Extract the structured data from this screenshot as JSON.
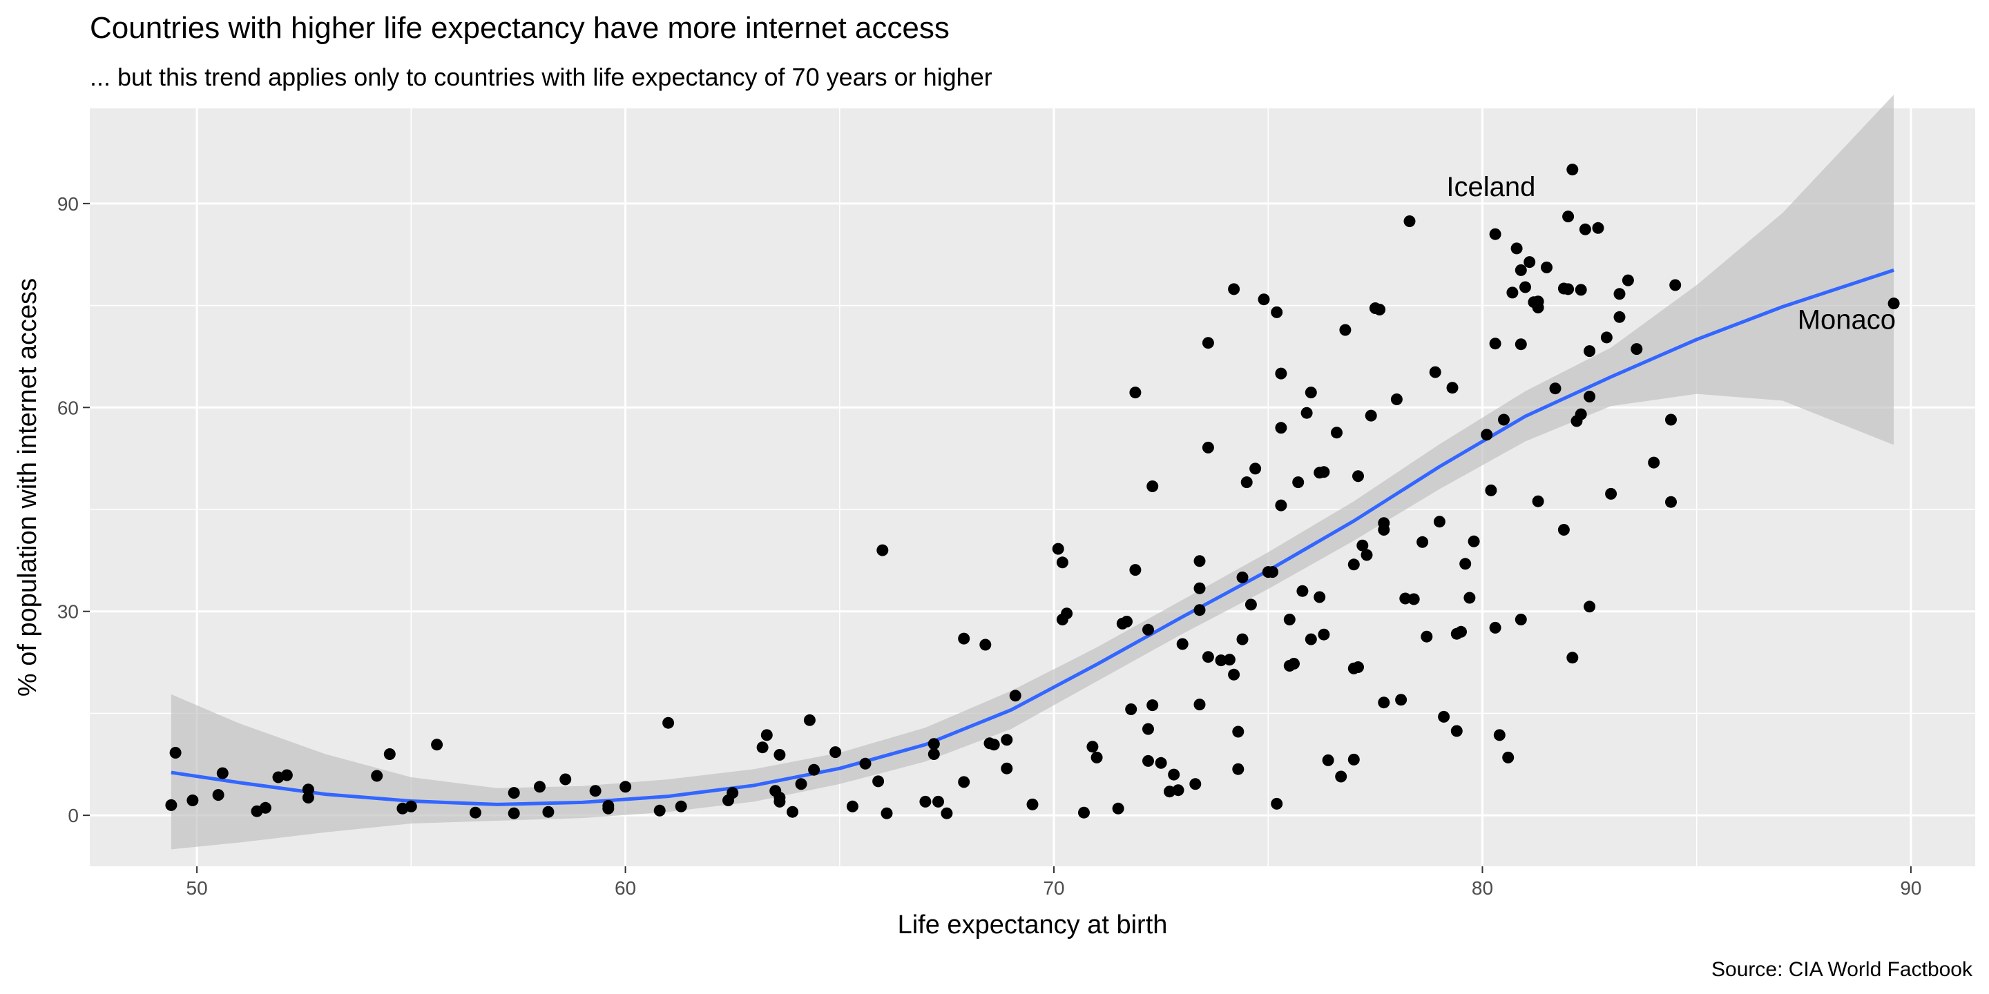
{
  "chart_data": {
    "type": "scatter",
    "title": "Countries with higher life expectancy have more internet access",
    "subtitle": "... but this trend applies only to countries with life expectancy of 70 years or higher",
    "xlabel": "Life expectancy at birth",
    "ylabel": "% of population with internet access",
    "caption": "Source: CIA World Factbook",
    "xlim": [
      47.5,
      91.5
    ],
    "ylim": [
      -7.5,
      104
    ],
    "xticks": [
      50,
      60,
      70,
      80,
      90
    ],
    "yticks": [
      0,
      30,
      60,
      90
    ],
    "grid": true,
    "colors": {
      "panel_bg": "#ebebeb",
      "grid_major": "#ffffff",
      "points": "#000000",
      "smooth_line": "#3366ff",
      "ribbon": "#bfbfbf"
    },
    "annotations": [
      {
        "label": "Iceland",
        "x": 80.2,
        "y": 92.5
      },
      {
        "label": "Monaco",
        "x": 88.5,
        "y": 73
      }
    ],
    "points": [
      [
        49.4,
        1.5
      ],
      [
        49.5,
        9.2
      ],
      [
        49.9,
        2.2
      ],
      [
        50.5,
        3.0
      ],
      [
        50.6,
        6.2
      ],
      [
        51.4,
        0.6
      ],
      [
        51.6,
        1.1
      ],
      [
        51.9,
        5.6
      ],
      [
        52.1,
        5.9
      ],
      [
        52.6,
        2.6
      ],
      [
        52.6,
        3.8
      ],
      [
        54.2,
        5.8
      ],
      [
        54.5,
        9.0
      ],
      [
        54.8,
        1.0
      ],
      [
        55.0,
        1.3
      ],
      [
        55.6,
        10.4
      ],
      [
        56.5,
        0.4
      ],
      [
        57.4,
        0.3
      ],
      [
        57.4,
        3.3
      ],
      [
        58.0,
        4.2
      ],
      [
        58.2,
        0.5
      ],
      [
        58.6,
        5.3
      ],
      [
        59.3,
        3.6
      ],
      [
        59.6,
        1.0
      ],
      [
        59.6,
        1.4
      ],
      [
        60.0,
        4.2
      ],
      [
        60.8,
        0.7
      ],
      [
        61.0,
        13.6
      ],
      [
        61.3,
        1.3
      ],
      [
        62.4,
        2.2
      ],
      [
        62.5,
        3.3
      ],
      [
        63.2,
        10.0
      ],
      [
        63.3,
        11.8
      ],
      [
        63.5,
        3.6
      ],
      [
        63.6,
        2.0
      ],
      [
        63.6,
        2.6
      ],
      [
        63.6,
        8.9
      ],
      [
        63.9,
        0.5
      ],
      [
        64.1,
        4.6
      ],
      [
        64.3,
        14.0
      ],
      [
        64.4,
        6.7
      ],
      [
        64.9,
        9.3
      ],
      [
        65.3,
        1.3
      ],
      [
        65.6,
        7.6
      ],
      [
        65.9,
        5.0
      ],
      [
        66.0,
        39.0
      ],
      [
        66.1,
        0.3
      ],
      [
        67.0,
        2.0
      ],
      [
        67.2,
        10.5
      ],
      [
        67.2,
        9.0
      ],
      [
        67.3,
        2.0
      ],
      [
        67.5,
        0.3
      ],
      [
        67.9,
        4.9
      ],
      [
        67.9,
        26.0
      ],
      [
        68.4,
        25.1
      ],
      [
        68.5,
        10.6
      ],
      [
        68.6,
        10.4
      ],
      [
        68.9,
        11.1
      ],
      [
        68.9,
        6.9
      ],
      [
        69.1,
        17.6
      ],
      [
        69.5,
        1.6
      ],
      [
        70.1,
        39.2
      ],
      [
        70.2,
        37.2
      ],
      [
        70.2,
        28.8
      ],
      [
        70.3,
        29.7
      ],
      [
        70.7,
        0.4
      ],
      [
        70.9,
        10.1
      ],
      [
        71.0,
        8.5
      ],
      [
        71.5,
        1.0
      ],
      [
        71.6,
        28.2
      ],
      [
        71.7,
        28.5
      ],
      [
        71.8,
        15.6
      ],
      [
        71.9,
        62.2
      ],
      [
        71.9,
        36.1
      ],
      [
        72.2,
        27.3
      ],
      [
        72.2,
        12.7
      ],
      [
        72.2,
        8.0
      ],
      [
        72.3,
        48.4
      ],
      [
        72.3,
        16.2
      ],
      [
        72.5,
        7.7
      ],
      [
        72.7,
        3.5
      ],
      [
        72.8,
        6.0
      ],
      [
        72.9,
        3.7
      ],
      [
        73.0,
        25.2
      ],
      [
        73.3,
        4.6
      ],
      [
        73.4,
        30.2
      ],
      [
        73.4,
        37.4
      ],
      [
        73.4,
        33.4
      ],
      [
        73.4,
        16.3
      ],
      [
        73.6,
        69.5
      ],
      [
        73.6,
        54.1
      ],
      [
        73.6,
        23.3
      ],
      [
        73.9,
        22.8
      ],
      [
        74.1,
        22.9
      ],
      [
        74.2,
        77.4
      ],
      [
        74.2,
        20.7
      ],
      [
        74.3,
        6.8
      ],
      [
        74.3,
        12.3
      ],
      [
        74.4,
        25.9
      ],
      [
        74.4,
        35.0
      ],
      [
        74.5,
        49.0
      ],
      [
        74.6,
        31.0
      ],
      [
        74.7,
        51.0
      ],
      [
        74.9,
        75.9
      ],
      [
        75.0,
        35.8
      ],
      [
        75.1,
        35.8
      ],
      [
        75.2,
        74.0
      ],
      [
        75.2,
        1.7
      ],
      [
        75.3,
        65.0
      ],
      [
        75.3,
        57.0
      ],
      [
        75.3,
        45.6
      ],
      [
        75.5,
        28.8
      ],
      [
        75.5,
        22.0
      ],
      [
        75.6,
        22.3
      ],
      [
        75.7,
        49.0
      ],
      [
        75.8,
        33.0
      ],
      [
        75.9,
        59.2
      ],
      [
        76.0,
        25.9
      ],
      [
        76.0,
        62.2
      ],
      [
        76.2,
        50.4
      ],
      [
        76.2,
        32.1
      ],
      [
        76.3,
        26.6
      ],
      [
        76.3,
        50.5
      ],
      [
        76.4,
        8.1
      ],
      [
        76.6,
        56.3
      ],
      [
        76.7,
        5.7
      ],
      [
        76.8,
        71.4
      ],
      [
        77.0,
        36.9
      ],
      [
        77.0,
        21.6
      ],
      [
        77.1,
        21.8
      ],
      [
        77.0,
        8.2
      ],
      [
        77.1,
        49.9
      ],
      [
        77.2,
        39.7
      ],
      [
        77.3,
        38.3
      ],
      [
        77.4,
        58.8
      ],
      [
        77.5,
        74.6
      ],
      [
        77.6,
        74.4
      ],
      [
        77.7,
        42.0
      ],
      [
        77.7,
        43.0
      ],
      [
        77.7,
        16.6
      ],
      [
        78.0,
        61.2
      ],
      [
        78.1,
        17.0
      ],
      [
        78.2,
        31.9
      ],
      [
        78.3,
        87.4
      ],
      [
        78.4,
        31.8
      ],
      [
        78.6,
        40.2
      ],
      [
        78.7,
        26.3
      ],
      [
        78.9,
        65.2
      ],
      [
        79.0,
        43.2
      ],
      [
        79.1,
        14.5
      ],
      [
        79.3,
        62.9
      ],
      [
        79.4,
        12.4
      ],
      [
        79.4,
        26.7
      ],
      [
        79.5,
        27.0
      ],
      [
        79.6,
        37.0
      ],
      [
        79.7,
        32.0
      ],
      [
        79.8,
        40.3
      ],
      [
        80.1,
        56.0
      ],
      [
        80.2,
        47.8
      ],
      [
        80.3,
        85.5
      ],
      [
        80.3,
        69.4
      ],
      [
        80.3,
        27.6
      ],
      [
        80.4,
        11.8
      ],
      [
        80.5,
        58.2
      ],
      [
        80.6,
        8.5
      ],
      [
        80.7,
        76.9
      ],
      [
        80.8,
        83.4
      ],
      [
        80.9,
        80.2
      ],
      [
        80.9,
        69.3
      ],
      [
        80.9,
        28.8
      ],
      [
        81.0,
        77.7
      ],
      [
        81.1,
        81.4
      ],
      [
        81.2,
        75.5
      ],
      [
        81.3,
        74.7
      ],
      [
        81.3,
        75.6
      ],
      [
        81.3,
        46.2
      ],
      [
        81.5,
        80.6
      ],
      [
        81.7,
        62.8
      ],
      [
        81.9,
        77.5
      ],
      [
        81.9,
        42.0
      ],
      [
        82.0,
        77.4
      ],
      [
        82.0,
        88.1
      ],
      [
        82.1,
        95.0
      ],
      [
        82.1,
        23.2
      ],
      [
        82.2,
        58.0
      ],
      [
        82.3,
        59.0
      ],
      [
        82.3,
        77.3
      ],
      [
        82.4,
        86.2
      ],
      [
        82.5,
        68.3
      ],
      [
        82.5,
        61.6
      ],
      [
        82.5,
        30.7
      ],
      [
        82.7,
        86.4
      ],
      [
        82.9,
        70.3
      ],
      [
        83.0,
        47.3
      ],
      [
        83.2,
        76.7
      ],
      [
        83.2,
        73.3
      ],
      [
        83.4,
        78.7
      ],
      [
        83.6,
        68.6
      ],
      [
        84.0,
        51.9
      ],
      [
        84.4,
        58.2
      ],
      [
        84.4,
        46.1
      ],
      [
        84.5,
        78.0
      ],
      [
        89.6,
        75.3
      ]
    ],
    "smooth": [
      [
        49.4,
        6.3
      ],
      [
        51.0,
        4.8
      ],
      [
        53.0,
        3.1
      ],
      [
        55.0,
        2.1
      ],
      [
        57.0,
        1.6
      ],
      [
        59.0,
        1.9
      ],
      [
        61.0,
        2.8
      ],
      [
        63.0,
        4.4
      ],
      [
        65.0,
        6.9
      ],
      [
        67.0,
        10.4
      ],
      [
        69.0,
        15.5
      ],
      [
        71.0,
        22.2
      ],
      [
        73.0,
        29.2
      ],
      [
        75.0,
        36.0
      ],
      [
        77.0,
        43.3
      ],
      [
        79.0,
        51.3
      ],
      [
        81.0,
        58.7
      ],
      [
        83.0,
        64.5
      ],
      [
        85.0,
        70.0
      ],
      [
        87.0,
        74.8
      ],
      [
        89.6,
        80.2
      ]
    ],
    "ribbon": [
      [
        49.4,
        -5.0,
        17.8
      ],
      [
        51.0,
        -4.0,
        13.5
      ],
      [
        53.0,
        -2.5,
        9.0
      ],
      [
        55.0,
        -1.2,
        5.6
      ],
      [
        57.0,
        -0.8,
        4.0
      ],
      [
        59.0,
        -0.4,
        4.3
      ],
      [
        61.0,
        0.5,
        5.3
      ],
      [
        63.0,
        2.0,
        6.8
      ],
      [
        65.0,
        4.6,
        9.2
      ],
      [
        67.0,
        7.9,
        12.9
      ],
      [
        69.0,
        12.7,
        18.3
      ],
      [
        71.0,
        19.7,
        24.7
      ],
      [
        73.0,
        26.7,
        31.7
      ],
      [
        75.0,
        33.3,
        38.7
      ],
      [
        77.0,
        40.4,
        46.2
      ],
      [
        79.0,
        48.0,
        54.6
      ],
      [
        81.0,
        55.0,
        62.4
      ],
      [
        83.0,
        60.2,
        68.8
      ],
      [
        85.0,
        62.0,
        78.0
      ],
      [
        87.0,
        61.0,
        88.6
      ],
      [
        89.6,
        54.5,
        106.0
      ]
    ]
  }
}
